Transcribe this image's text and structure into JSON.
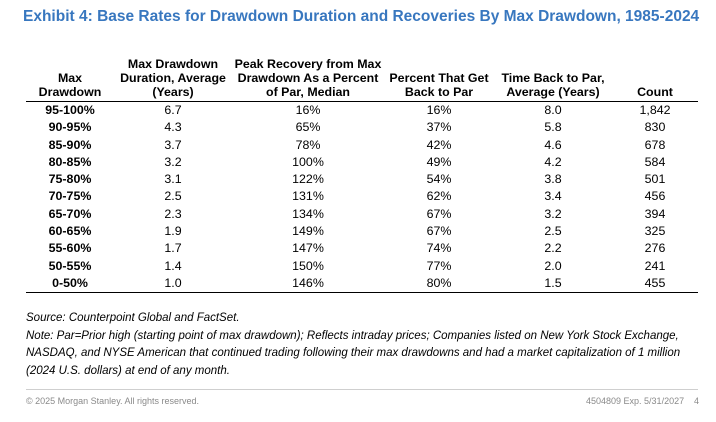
{
  "title": "Exhibit 4: Base Rates for Drawdown Duration and Recoveries By Max Drawdown, 1985-2024",
  "table": {
    "headers": [
      "Max Drawdown",
      "Max Drawdown Duration, Average (Years)",
      "Peak Recovery from Max Drawdown As a Percent of Par, Median",
      "Percent That Get Back to Par",
      "Time Back to Par, Average (Years)",
      "Count"
    ],
    "rows": [
      [
        "95-100%",
        "6.7",
        "16%",
        "16%",
        "8.0",
        "1,842"
      ],
      [
        "90-95%",
        "4.3",
        "65%",
        "37%",
        "5.8",
        "830"
      ],
      [
        "85-90%",
        "3.7",
        "78%",
        "42%",
        "4.6",
        "678"
      ],
      [
        "80-85%",
        "3.2",
        "100%",
        "49%",
        "4.2",
        "584"
      ],
      [
        "75-80%",
        "3.1",
        "122%",
        "54%",
        "3.8",
        "501"
      ],
      [
        "70-75%",
        "2.5",
        "131%",
        "62%",
        "3.4",
        "456"
      ],
      [
        "65-70%",
        "2.3",
        "134%",
        "67%",
        "3.2",
        "394"
      ],
      [
        "60-65%",
        "1.9",
        "149%",
        "67%",
        "2.5",
        "325"
      ],
      [
        "55-60%",
        "1.7",
        "147%",
        "74%",
        "2.2",
        "276"
      ],
      [
        "50-55%",
        "1.4",
        "150%",
        "77%",
        "2.0",
        "241"
      ],
      [
        "0-50%",
        "1.0",
        "146%",
        "80%",
        "1.5",
        "455"
      ]
    ]
  },
  "source": "Source: Counterpoint Global and FactSet.",
  "note": "Note: Par=Prior high (starting point of max drawdown); Reflects intraday prices; Companies listed on New York Stock Exchange, NASDAQ, and NYSE American that continued trading following their max drawdowns and had a market capitalization of 1 million (2024 U.S. dollars) at end of any month.",
  "footer": {
    "copyright": "© 2025 Morgan Stanley. All rights reserved.",
    "doc_id": "4504809 Exp. 5/31/2027",
    "page": "4"
  },
  "colors": {
    "title": "#3877bf",
    "footer_text": "#8a8a8a"
  }
}
